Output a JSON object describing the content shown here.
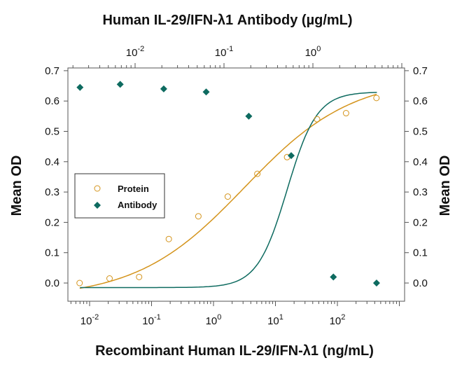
{
  "chart_data": {
    "type": "scatter",
    "title": "Human IL-29/IFN-λ1 Antibody (µg/mL)",
    "xlabel": "Recombinant Human IL-29/IFN-λ1 (ng/mL)",
    "ylabel": "Mean OD",
    "ylabel_right": "Mean OD",
    "x_scale": "log",
    "x_top_scale": "log",
    "ylim": [
      -0.06,
      0.7
    ],
    "y_ticks": [
      "0.0",
      "0.1",
      "0.2",
      "0.3",
      "0.4",
      "0.5",
      "0.6",
      "0.7"
    ],
    "x_ticks": [
      {
        "base": "10",
        "exp": "-2"
      },
      {
        "base": "10",
        "exp": "-1"
      },
      {
        "base": "10",
        "exp": "0"
      },
      {
        "base": "10",
        "exp": "1"
      },
      {
        "base": "10",
        "exp": "2"
      }
    ],
    "x_top_ticks": [
      {
        "base": "10",
        "exp": "-2"
      },
      {
        "base": "10",
        "exp": "-1"
      },
      {
        "base": "10",
        "exp": "0"
      }
    ],
    "legend_position": "middle-left",
    "series": [
      {
        "name": "Protein",
        "axis": "bottom",
        "marker": "open-circle",
        "color": "#d4941c",
        "x": [
          0.0069,
          0.021,
          0.063,
          0.19,
          0.57,
          1.7,
          5.1,
          15.4,
          47,
          138,
          427
        ],
        "y": [
          0.0,
          0.015,
          0.02,
          0.145,
          0.22,
          0.285,
          0.36,
          0.415,
          0.54,
          0.56,
          0.61
        ]
      },
      {
        "name": "Antibody",
        "axis": "top",
        "marker": "filled-diamond",
        "color": "#0e6b60",
        "x": [
          0.0024,
          0.0068,
          0.021,
          0.063,
          0.19,
          0.57,
          1.7,
          5.2
        ],
        "y": [
          0.645,
          0.655,
          0.64,
          0.63,
          0.55,
          0.42,
          0.02,
          0.0
        ]
      }
    ]
  }
}
